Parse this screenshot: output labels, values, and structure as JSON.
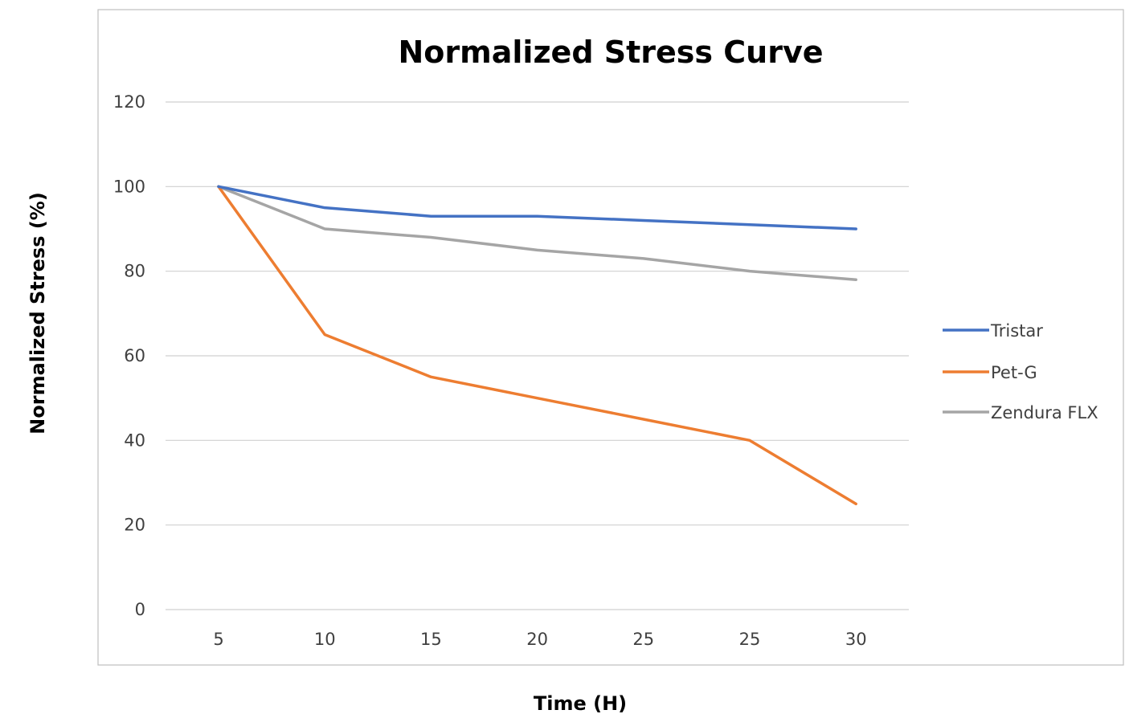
{
  "chart_data": {
    "type": "line",
    "title": "Normalized Stress Curve",
    "xlabel": "Time (H)",
    "ylabel": "Normalized Stress (%)",
    "categories": [
      "5",
      "10",
      "15",
      "20",
      "25",
      "25",
      "30"
    ],
    "ylim": [
      0,
      120
    ],
    "yticks": [
      "0",
      "20",
      "40",
      "60",
      "80",
      "100",
      "120"
    ],
    "grid": true,
    "legend_position": "right",
    "series": [
      {
        "name": "Tristar",
        "color": "#4472C4",
        "values": [
          100,
          95,
          93,
          93,
          92,
          91,
          90
        ]
      },
      {
        "name": "Pet-G",
        "color": "#ED7D31",
        "values": [
          100,
          65,
          55,
          50,
          45,
          40,
          25
        ]
      },
      {
        "name": "Zendura FLX",
        "color": "#A5A5A5",
        "values": [
          100,
          90,
          88,
          85,
          83,
          80,
          78
        ]
      }
    ]
  }
}
